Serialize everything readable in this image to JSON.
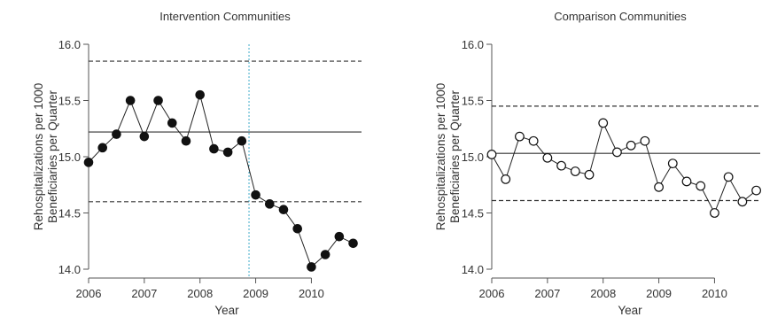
{
  "chart_data": [
    {
      "type": "line",
      "title": "Intervention Communities",
      "xlabel": "Year",
      "ylabel_lines": [
        "Rehospitalizations per 1000",
        "Beneficiaries per Quarter"
      ],
      "xlim": [
        2006,
        2010.9
      ],
      "ylim": [
        14.0,
        16.0
      ],
      "xticks": [
        2006,
        2007,
        2008,
        2009,
        2010
      ],
      "yticks": [
        14.0,
        14.5,
        15.0,
        15.5,
        16.0
      ],
      "ytick_labels": [
        "14.0",
        "14.5",
        "15.0",
        "15.5",
        "16.0"
      ],
      "marker": "filled",
      "series": [
        {
          "x": [
            2006.0,
            2006.25,
            2006.5,
            2006.75,
            2007.0,
            2007.25,
            2007.5,
            2007.75,
            2008.0,
            2008.25,
            2008.5,
            2008.75,
            2009.0,
            2009.25,
            2009.5,
            2009.75,
            2010.0,
            2010.25,
            2010.5,
            2010.75
          ],
          "values": [
            14.95,
            15.08,
            15.2,
            15.5,
            15.18,
            15.5,
            15.3,
            15.14,
            15.55,
            15.07,
            15.04,
            15.14,
            14.66,
            14.58,
            14.53,
            14.36,
            14.02,
            14.13,
            14.29,
            14.23
          ]
        }
      ],
      "reference_lines": {
        "mean": 15.22,
        "upper": 15.85,
        "lower": 14.6
      },
      "intervention_line_x": 2008.88,
      "colors": {
        "line": "#222222",
        "marker": "#111111",
        "intervention": "#3aa9c9"
      }
    },
    {
      "type": "line",
      "title": "Comparison Communities",
      "xlabel": "Year",
      "ylabel_lines": [
        "Rehospitalizations per 1000",
        "Beneficiaries per Quarter"
      ],
      "xlim": [
        2006,
        2010.9
      ],
      "ylim": [
        14.0,
        16.0
      ],
      "xticks": [
        2006,
        2007,
        2008,
        2009,
        2010
      ],
      "yticks": [
        14.0,
        14.5,
        15.0,
        15.5,
        16.0
      ],
      "ytick_labels": [
        "14.0",
        "14.5",
        "15.0",
        "15.5",
        "16.0"
      ],
      "marker": "open",
      "series": [
        {
          "x": [
            2006.0,
            2006.25,
            2006.5,
            2006.75,
            2007.0,
            2007.25,
            2007.5,
            2007.75,
            2008.0,
            2008.25,
            2008.5,
            2008.75,
            2009.0,
            2009.25,
            2009.5,
            2009.75,
            2010.0,
            2010.25,
            2010.5,
            2010.75
          ],
          "values": [
            15.02,
            14.8,
            15.18,
            15.14,
            14.99,
            14.92,
            14.87,
            14.84,
            15.3,
            15.04,
            15.1,
            15.14,
            14.73,
            14.94,
            14.78,
            14.74,
            14.5,
            14.82,
            14.6,
            14.7
          ]
        }
      ],
      "reference_lines": {
        "mean": 15.03,
        "upper": 15.45,
        "lower": 14.61
      },
      "colors": {
        "line": "#222222",
        "marker": "#111111"
      }
    }
  ]
}
